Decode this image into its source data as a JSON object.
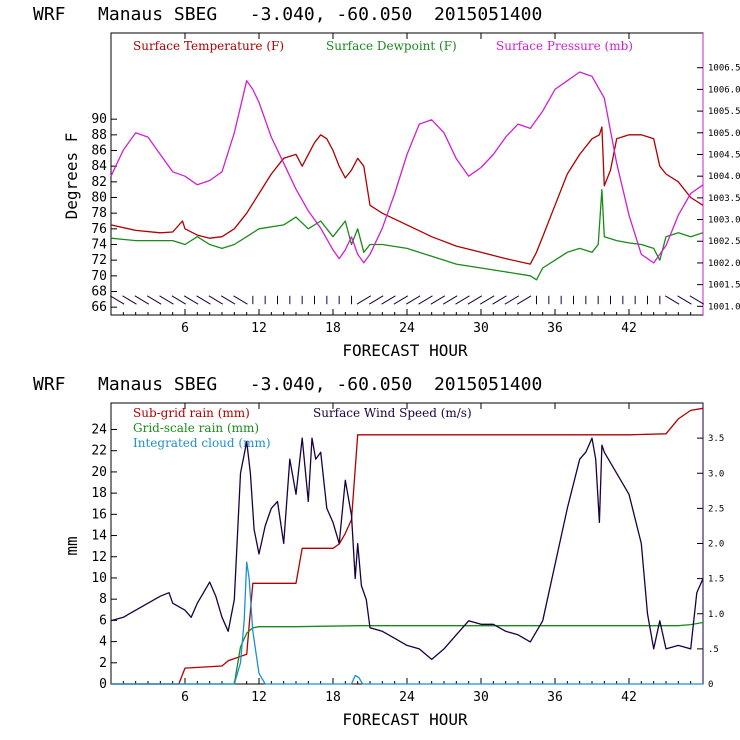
{
  "chart_data": [
    {
      "type": "line",
      "title": "WRF   Manaus SBEG   -3.040, -60.050  2015051400",
      "xlabel": "FORECAST HOUR",
      "ylabel": "Degrees F",
      "xlim": [
        0,
        48
      ],
      "ylim": [
        65,
        101
      ],
      "y2lim": [
        1000.8,
        1007.3
      ],
      "xticks": [
        "6",
        "12",
        "18",
        "24",
        "30",
        "36",
        "42"
      ],
      "yticks": [
        "66",
        "68",
        "70",
        "72",
        "74",
        "76",
        "78",
        "80",
        "82",
        "84",
        "86",
        "88",
        "90"
      ],
      "y2ticks": [
        "1001.0",
        "1001.5",
        "1002.0",
        "1002.5",
        "1003.0",
        "1003.5",
        "1004.0",
        "1004.5",
        "1005.0",
        "1005.5",
        "1006.0",
        "1006.5"
      ],
      "legend": [
        "Surface Temperature (F)",
        "Surface Dewpoint (F)",
        "Surface Pressure (mb)"
      ],
      "colors": {
        "temperature": "#b00000",
        "dewpoint": "#1a8a1a",
        "pressure": "#d020d0",
        "wind": "#1a0040"
      },
      "series": [
        {
          "name": "Surface Temperature (F)",
          "axis": "left",
          "x": [
            0,
            2,
            4,
            5,
            5.8,
            6,
            7,
            8,
            9,
            10,
            11,
            12,
            13,
            14,
            15,
            15.5,
            16,
            16.5,
            17,
            17.5,
            18,
            18.5,
            19,
            19.5,
            20,
            20.5,
            21,
            22,
            24,
            26,
            28,
            30,
            32,
            34,
            34.5,
            35,
            36,
            37,
            38,
            39,
            39.6,
            39.8,
            40,
            40.5,
            41,
            42,
            43,
            44,
            44.5,
            45,
            46,
            47,
            48
          ],
          "y": [
            76.5,
            75.8,
            75.5,
            75.6,
            77,
            76,
            75.2,
            74.8,
            75,
            76,
            78,
            80.5,
            83,
            85,
            85.5,
            84,
            85.5,
            87,
            88,
            87.5,
            86,
            84,
            82.5,
            83.5,
            85,
            84,
            79,
            78,
            76.5,
            75,
            73.8,
            73,
            72.2,
            71.5,
            73,
            75,
            79,
            83,
            85.5,
            87.5,
            88,
            89,
            81.5,
            83.5,
            87.5,
            88,
            88,
            87.5,
            84,
            83,
            82,
            80,
            79
          ]
        },
        {
          "name": "Surface Dewpoint (F)",
          "axis": "left",
          "x": [
            0,
            2,
            4,
            5,
            6,
            7,
            8,
            9,
            10,
            11,
            12,
            14,
            15,
            16,
            17,
            18,
            18.5,
            19,
            19.5,
            20,
            20.5,
            21,
            22,
            24,
            26,
            28,
            30,
            32,
            34,
            34.5,
            35,
            36,
            37,
            38,
            39,
            39.5,
            39.8,
            40,
            41,
            42,
            43,
            44,
            44.5,
            45,
            46,
            47,
            48
          ],
          "y": [
            74.8,
            74.5,
            74.5,
            74.5,
            74,
            75,
            74,
            73.5,
            74,
            75,
            76,
            76.5,
            77.5,
            76,
            77,
            75,
            76,
            77,
            74,
            76,
            73,
            74,
            74,
            73.5,
            72.5,
            71.5,
            71,
            70.5,
            70,
            69.5,
            71,
            72,
            73,
            73.5,
            73,
            74,
            81,
            75,
            74.5,
            74.2,
            74,
            73.5,
            72,
            75,
            75.5,
            75,
            75.5
          ]
        },
        {
          "name": "Surface Pressure (mb)",
          "axis": "right",
          "x": [
            0,
            1,
            2,
            3,
            4,
            5,
            6,
            7,
            8,
            9,
            10,
            10.5,
            11,
            11.5,
            12,
            13,
            14,
            15,
            16,
            17,
            18,
            18.5,
            19,
            19.5,
            20,
            20.5,
            21,
            22,
            23,
            24,
            25,
            26,
            27,
            28,
            29,
            30,
            31,
            32,
            33,
            34,
            35,
            36,
            37,
            38,
            39,
            40,
            41,
            42,
            43,
            44,
            45,
            46,
            47,
            48
          ],
          "y": [
            1004,
            1004.6,
            1005,
            1004.9,
            1004.5,
            1004.1,
            1004,
            1003.8,
            1003.9,
            1004.1,
            1005,
            1005.6,
            1006.2,
            1006,
            1005.7,
            1004.9,
            1004.3,
            1003.7,
            1003.2,
            1002.8,
            1002.3,
            1002.1,
            1002.3,
            1002.6,
            1002.2,
            1002,
            1002.2,
            1002.8,
            1003.6,
            1004.5,
            1005.2,
            1005.3,
            1005,
            1004.4,
            1004,
            1004.2,
            1004.5,
            1004.9,
            1005.2,
            1005.1,
            1005.5,
            1006,
            1006.2,
            1006.4,
            1006.3,
            1005.8,
            1004.3,
            1003.1,
            1002.2,
            1002,
            1002.4,
            1003.1,
            1003.6,
            1003.8
          ]
        }
      ],
      "wind_barbs": {
        "x": [
          0.5,
          1.5,
          2.5,
          3.5,
          4.5,
          5.5,
          6.5,
          7.5,
          8.5,
          9.5,
          10.5,
          11.5,
          12.5,
          13.5,
          14.5,
          15.5,
          16.5,
          17.5,
          18.5,
          19.5,
          20.5,
          21.5,
          22.5,
          23.5,
          24.5,
          25.5,
          26.5,
          27.5,
          28.5,
          29.5,
          30.5,
          31.5,
          32.5,
          33.5,
          34.5,
          35.5,
          36.5,
          37.5,
          38.5,
          39.5,
          40.5,
          41.5,
          42.5,
          43.5,
          44.5,
          45.5,
          46.5,
          47.5
        ],
        "direction": [
          "nw",
          "nw",
          "nw",
          "nw",
          "nw",
          "nw",
          "nw",
          "nw",
          "nw",
          "nw",
          "nw",
          "n",
          "n",
          "n",
          "n",
          "n",
          "n",
          "n",
          "n",
          "n",
          "ne",
          "ne",
          "ne",
          "ne",
          "ne",
          "ne",
          "ne",
          "ne",
          "ne",
          "ne",
          "ne",
          "ne",
          "ne",
          "ne",
          "n",
          "n",
          "n",
          "n",
          "n",
          "n",
          "n",
          "n",
          "n",
          "n",
          "n",
          "nw",
          "nw",
          "nw"
        ]
      }
    },
    {
      "type": "line",
      "title": "WRF   Manaus SBEG   -3.040, -60.050  2015051400",
      "xlabel": "FORECAST HOUR",
      "ylabel": "mm",
      "xlim": [
        0,
        48
      ],
      "ylim": [
        0,
        26.5
      ],
      "y2lim": [
        0,
        4.0
      ],
      "xticks": [
        "6",
        "12",
        "18",
        "24",
        "30",
        "36",
        "42"
      ],
      "yticks": [
        "0",
        "2",
        "4",
        "6",
        "8",
        "10",
        "12",
        "14",
        "16",
        "18",
        "20",
        "22",
        "24"
      ],
      "y2ticks": [
        "0",
        ".5",
        "1.0",
        "1.5",
        "2.0",
        "2.5",
        "3.0",
        "3.5"
      ],
      "legend": [
        "Sub-grid rain (mm)",
        "Grid-scale rain (mm)",
        "Integrated cloud (mm)",
        "Surface Wind Speed (m/s)"
      ],
      "colors": {
        "subgrid": "#b00000",
        "gridscale": "#1a8a1a",
        "cloud": "#1e90d0",
        "wind": "#1a0040"
      },
      "series": [
        {
          "name": "Sub-grid rain (mm)",
          "axis": "left",
          "x": [
            0,
            5.5,
            6,
            9,
            9.5,
            10,
            11,
            11.5,
            12,
            13,
            14,
            15,
            15.5,
            16,
            17,
            17.5,
            18,
            18.5,
            19,
            19.5,
            20,
            21,
            24,
            30,
            36,
            40,
            42,
            45,
            46,
            47,
            48
          ],
          "y": [
            0,
            0,
            1.5,
            1.7,
            2.2,
            2.4,
            2.8,
            9.5,
            9.5,
            9.5,
            9.5,
            9.5,
            12.8,
            12.8,
            12.8,
            12.8,
            12.8,
            13.2,
            14.2,
            15.5,
            23.5,
            23.5,
            23.5,
            23.5,
            23.5,
            23.5,
            23.5,
            23.6,
            25,
            25.8,
            26
          ]
        },
        {
          "name": "Grid-scale rain (mm)",
          "axis": "left",
          "x": [
            0,
            10,
            10.5,
            11,
            11.5,
            12,
            15,
            20,
            30,
            40,
            44,
            46,
            47,
            48
          ],
          "y": [
            0,
            0,
            3.5,
            4.8,
            5.3,
            5.4,
            5.4,
            5.5,
            5.5,
            5.5,
            5.5,
            5.5,
            5.6,
            5.8
          ]
        },
        {
          "name": "Integrated cloud (mm)",
          "axis": "left",
          "x": [
            0,
            10,
            10.5,
            10.8,
            11,
            11.2,
            11.5,
            12,
            12.5,
            13,
            19.5,
            19.8,
            20.1,
            20.4,
            48
          ],
          "y": [
            0,
            0,
            2,
            6,
            11.5,
            10,
            5,
            1,
            0,
            0,
            0,
            0.8,
            0.6,
            0,
            0
          ]
        },
        {
          "name": "Surface Wind Speed (m/s)",
          "axis": "right",
          "x": [
            0,
            1,
            2,
            3,
            4,
            4.7,
            5,
            6,
            6.5,
            7,
            7.5,
            8,
            8.5,
            9,
            9.5,
            10,
            10.5,
            11,
            11.3,
            11.6,
            12,
            12.5,
            13,
            13.5,
            14,
            14.5,
            15,
            15.5,
            16,
            16.3,
            16.6,
            17,
            17.5,
            18,
            18.5,
            19,
            19.5,
            19.8,
            20,
            20.3,
            20.7,
            21,
            22,
            23,
            24,
            25,
            26,
            27,
            28,
            29,
            30,
            31,
            32,
            33,
            34,
            35,
            36,
            37,
            38,
            38.5,
            39,
            39.3,
            39.6,
            39.8,
            40,
            41,
            42,
            43,
            43.5,
            44,
            44.5,
            45,
            46,
            47,
            47.5,
            48
          ],
          "y": [
            0.9,
            0.95,
            1.05,
            1.15,
            1.25,
            1.3,
            1.15,
            1.05,
            0.95,
            1.15,
            1.3,
            1.45,
            1.25,
            0.95,
            0.75,
            1.2,
            3.0,
            3.45,
            3.0,
            2.2,
            1.85,
            2.25,
            2.5,
            2.6,
            2.0,
            3.2,
            2.7,
            3.5,
            2.6,
            3.5,
            3.2,
            3.3,
            2.5,
            2.3,
            2.0,
            2.9,
            2.4,
            1.5,
            2.0,
            1.4,
            1.2,
            0.8,
            0.75,
            0.65,
            0.55,
            0.5,
            0.35,
            0.5,
            0.7,
            0.9,
            0.85,
            0.85,
            0.75,
            0.7,
            0.6,
            0.9,
            1.7,
            2.5,
            3.2,
            3.3,
            3.5,
            3.2,
            2.3,
            3.4,
            3.3,
            3.0,
            2.7,
            2.0,
            1.0,
            0.5,
            0.9,
            0.5,
            0.55,
            0.5,
            1.3,
            1.5
          ]
        }
      ]
    }
  ]
}
